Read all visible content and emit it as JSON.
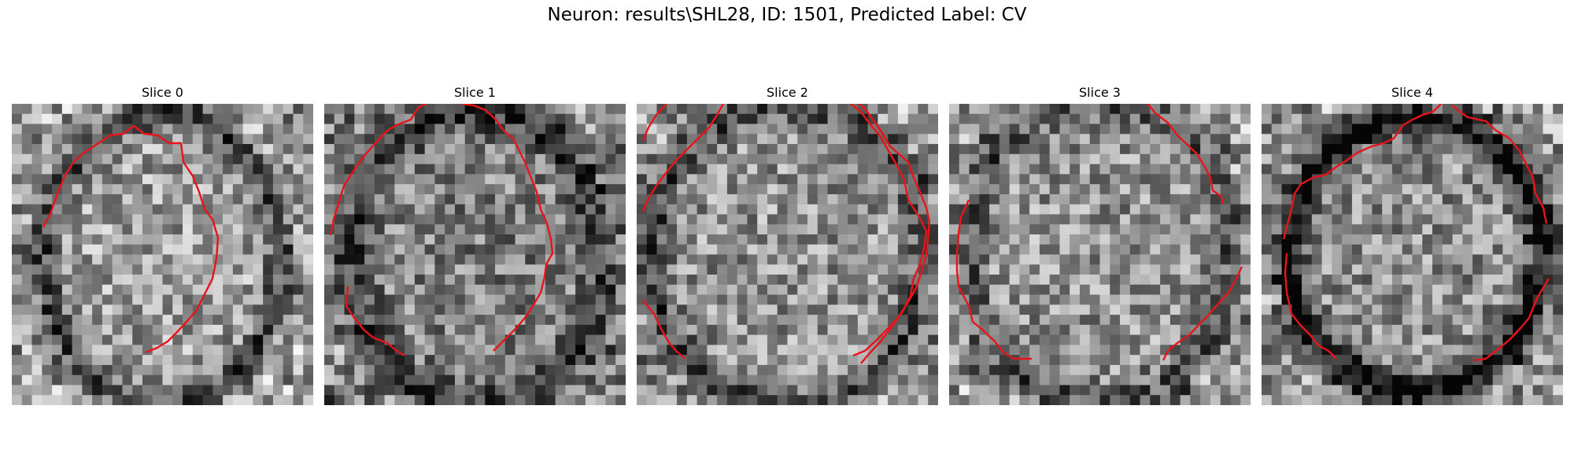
{
  "figure": {
    "title": "Neuron: results\\SHL28, ID: 1501, Predicted Label: CV"
  },
  "panels": [
    {
      "title": "Slice 0"
    },
    {
      "title": "Slice 1"
    },
    {
      "title": "Slice 2"
    },
    {
      "title": "Slice 3"
    },
    {
      "title": "Slice 4"
    }
  ],
  "colors": {
    "contour": "#e8141a"
  }
}
